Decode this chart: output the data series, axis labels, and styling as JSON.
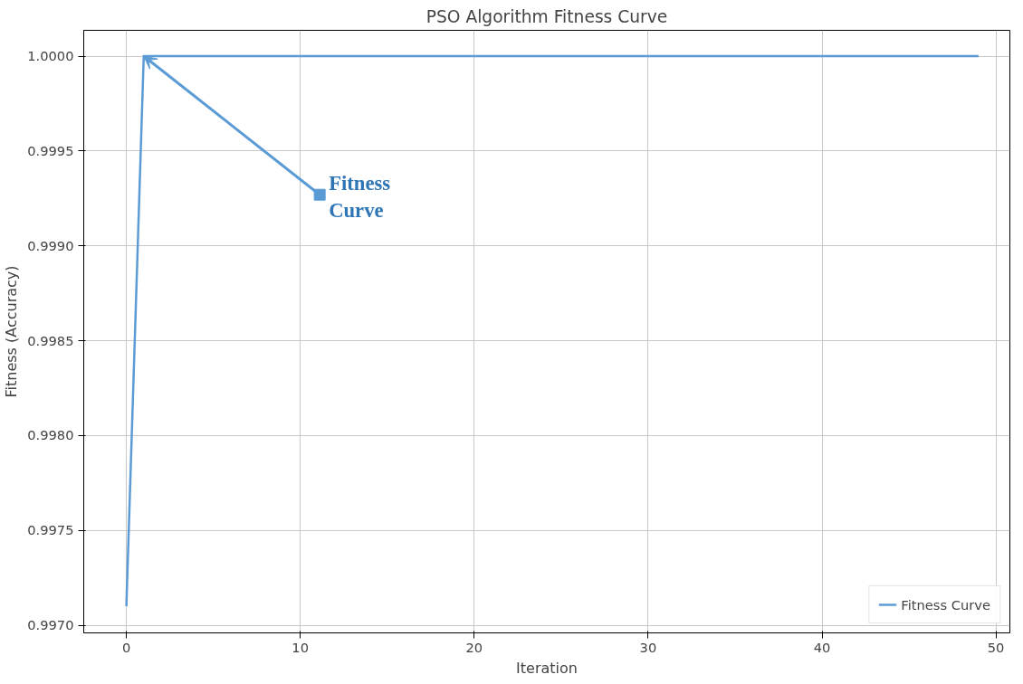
{
  "chart_data": {
    "type": "line",
    "title": "PSO Algorithm Fitness Curve",
    "xlabel": "Iteration",
    "ylabel": "Fitness (Accuracy)",
    "x": [
      0,
      1,
      49
    ],
    "series": [
      {
        "name": "Fitness Curve",
        "color": "#5b9bd5",
        "values": [
          0.9971,
          1.0,
          1.0
        ]
      }
    ],
    "xlim": [
      -2.45,
      50.8
    ],
    "xticks": [
      0,
      10,
      20,
      30,
      40,
      50
    ],
    "ylim": [
      0.99696,
      1.000136
    ],
    "yticks": [
      {
        "value": 0.997,
        "label": "0.9970"
      },
      {
        "value": 0.9975,
        "label": "0.9975"
      },
      {
        "value": 0.998,
        "label": "0.9980"
      },
      {
        "value": 0.9985,
        "label": "0.9985"
      },
      {
        "value": 0.999,
        "label": "0.9990"
      },
      {
        "value": 0.9995,
        "label": "0.9995"
      },
      {
        "value": 1.0,
        "label": "1.0000"
      }
    ],
    "annotations": [
      {
        "text": "Fitness\nCurve",
        "x": 1,
        "y": 1.0
      }
    ],
    "grid": true,
    "legend": "bottom right",
    "marker": "none",
    "line_style": "solid"
  }
}
